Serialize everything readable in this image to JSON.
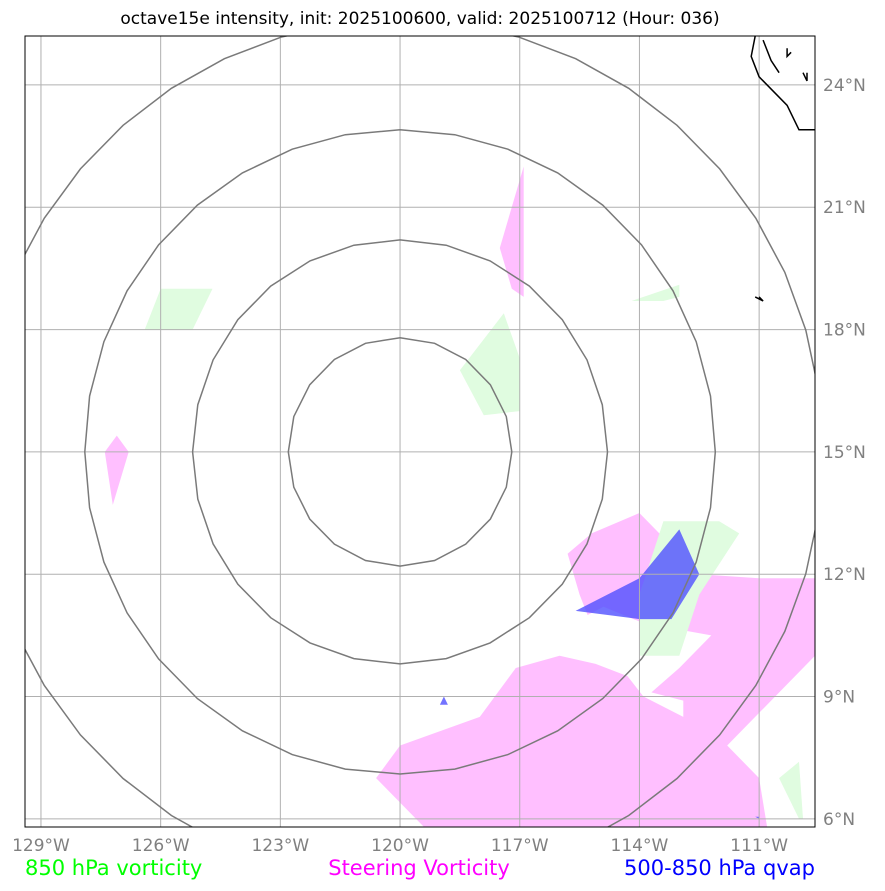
{
  "chart_data": {
    "type": "map",
    "title": "octave15e intensity, init: 2025100600, valid: 2025100712 (Hour: 036)",
    "extent": {
      "lon": [
        -129.4,
        -109.6
      ],
      "lat": [
        5.8,
        25.2
      ]
    },
    "lon_ticks": [
      -129,
      -126,
      -123,
      -120,
      -117,
      -114,
      -111
    ],
    "lon_tick_labels": [
      "129°W",
      "126°W",
      "123°W",
      "120°W",
      "117°W",
      "114°W",
      "111°W"
    ],
    "lat_ticks": [
      6,
      9,
      12,
      15,
      18,
      21,
      24
    ],
    "lat_tick_labels": [
      "6°N",
      "9°N",
      "12°N",
      "15°N",
      "18°N",
      "21°N",
      "24°N"
    ],
    "range_rings_center": {
      "lon": -120.0,
      "lat": 15.0
    },
    "range_rings_radius_deg": [
      2.8,
      5.2,
      7.9,
      10.6
    ],
    "legend": [
      {
        "label": "850 hPa vorticity",
        "color": "#00ff00"
      },
      {
        "label": "Steering Vorticity",
        "color": "#ff00ff"
      },
      {
        "label": "500-850 hPa qvap",
        "color": "#0000ff"
      }
    ],
    "fields": [
      {
        "layer": "Steering Vorticity",
        "color": "#ffbfff",
        "polygons": [
          [
            [
              -116.9,
              22.0
            ],
            [
              -116.9,
              18.8
            ],
            [
              -117.2,
              19.0
            ],
            [
              -117.5,
              20.0
            ]
          ],
          [
            [
              -127.1,
              15.4
            ],
            [
              -127.4,
              15.0
            ],
            [
              -127.2,
              13.7
            ],
            [
              -126.8,
              15.0
            ]
          ],
          [
            [
              -114.0,
              13.5
            ],
            [
              -112.5,
              12.0
            ],
            [
              -111.0,
              11.9
            ],
            [
              -109.6,
              11.9
            ],
            [
              -109.6,
              10.0
            ],
            [
              -111.8,
              7.8
            ],
            [
              -111.0,
              7.0
            ],
            [
              -110.8,
              5.8
            ],
            [
              -119.4,
              5.8
            ],
            [
              -120.6,
              7.0
            ],
            [
              -120.0,
              7.8
            ],
            [
              -118.0,
              8.5
            ],
            [
              -117.1,
              9.7
            ],
            [
              -116.0,
              10.0
            ],
            [
              -115.1,
              9.8
            ],
            [
              -114.3,
              9.5
            ],
            [
              -113.9,
              9.0
            ],
            [
              -112.9,
              8.5
            ],
            [
              -112.9,
              8.9
            ],
            [
              -113.7,
              9.1
            ],
            [
              -113.0,
              9.7
            ],
            [
              -112.2,
              10.5
            ],
            [
              -113.9,
              10.8
            ],
            [
              -114.9,
              11.2
            ],
            [
              -115.3,
              11.0
            ],
            [
              -115.5,
              11.5
            ],
            [
              -115.8,
              12.5
            ],
            [
              -115.2,
              13.0
            ]
          ]
        ]
      },
      {
        "layer": "850 hPa vorticity",
        "color": "#e0fce0",
        "polygons": [
          [
            [
              -126.0,
              19.0
            ],
            [
              -124.7,
              19.0
            ],
            [
              -125.2,
              18.0
            ],
            [
              -126.4,
              18.0
            ]
          ],
          [
            [
              -117.4,
              18.4
            ],
            [
              -117.0,
              17.3
            ],
            [
              -117.0,
              16.0
            ],
            [
              -117.9,
              15.9
            ],
            [
              -118.5,
              17.0
            ]
          ],
          [
            [
              -113.0,
              18.8
            ],
            [
              -113.4,
              18.7
            ],
            [
              -114.2,
              18.7
            ],
            [
              -113.0,
              19.1
            ]
          ],
          [
            [
              -113.4,
              13.3
            ],
            [
              -112.0,
              13.3
            ],
            [
              -111.5,
              13.0
            ],
            [
              -112.5,
              11.5
            ],
            [
              -113.0,
              10.0
            ],
            [
              -114.0,
              10.0
            ],
            [
              -114.0,
              11.5
            ]
          ],
          [
            [
              -110.0,
              7.4
            ],
            [
              -110.5,
              7.0
            ],
            [
              -110.0,
              6.0
            ],
            [
              -109.9,
              6.0
            ]
          ]
        ]
      },
      {
        "layer": "500-850 hPa qvap",
        "color": "#5050ff",
        "polygons": [
          [
            [
              -113.0,
              13.1
            ],
            [
              -112.5,
              12.0
            ],
            [
              -113.2,
              10.9
            ],
            [
              -114.0,
              10.9
            ],
            [
              -115.6,
              11.1
            ],
            [
              -114.0,
              11.9
            ]
          ],
          [
            [
              -119.0,
              8.8
            ],
            [
              -118.8,
              8.8
            ],
            [
              -118.9,
              9.0
            ]
          ],
          [
            [
              -111.1,
              6.05
            ],
            [
              -111.0,
              6.05
            ],
            [
              -111.0,
              6.0
            ]
          ]
        ]
      }
    ],
    "coastline": [
      [
        [
          -111.1,
          25.2
        ],
        [
          -111.2,
          24.7
        ],
        [
          -111.0,
          24.2
        ],
        [
          -110.3,
          23.5
        ],
        [
          -110.0,
          22.9
        ],
        [
          -109.6,
          22.9
        ]
      ],
      [
        [
          -110.9,
          25.1
        ],
        [
          -110.7,
          24.6
        ],
        [
          -110.5,
          24.3
        ]
      ],
      [
        [
          -110.3,
          24.9
        ],
        [
          -110.3,
          24.7
        ],
        [
          -110.2,
          24.8
        ]
      ],
      [
        [
          -109.9,
          24.3
        ],
        [
          -109.8,
          24.1
        ],
        [
          -109.8,
          24.3
        ]
      ],
      [
        [
          -111.0,
          18.8
        ],
        [
          -110.9,
          18.7
        ],
        [
          -111.1,
          18.8
        ]
      ]
    ]
  }
}
